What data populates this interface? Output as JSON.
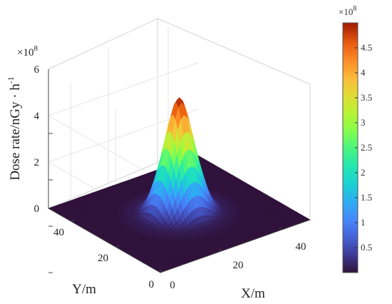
{
  "chart_data": {
    "type": "surface3d",
    "title": "",
    "xlabel": "X/m",
    "ylabel": "Y/m",
    "zlabel_main": "Dose rate/nGy",
    "zlabel_unit": "h",
    "zlabel_unit_exp": "-1",
    "z_exponent_label": "×10",
    "z_exponent_power": "8",
    "xlim": [
      0,
      50
    ],
    "ylim": [
      0,
      50
    ],
    "zlim": [
      0,
      6
    ],
    "x_ticks": [
      "0",
      "20",
      "40"
    ],
    "y_ticks": [
      "0",
      "20",
      "40"
    ],
    "z_ticks": [
      "0",
      "2",
      "4",
      "6"
    ],
    "peak": {
      "x": 25,
      "y": 25,
      "value": 4.9
    },
    "colorbar": {
      "exponent_label": "×10",
      "exponent_power": "8",
      "range": [
        0,
        5
      ],
      "ticks": [
        "0.5",
        "1",
        "1.5",
        "2",
        "2.5",
        "3",
        "3.5",
        "4",
        "4.5"
      ],
      "colormap": "turbo"
    },
    "grid": true
  }
}
